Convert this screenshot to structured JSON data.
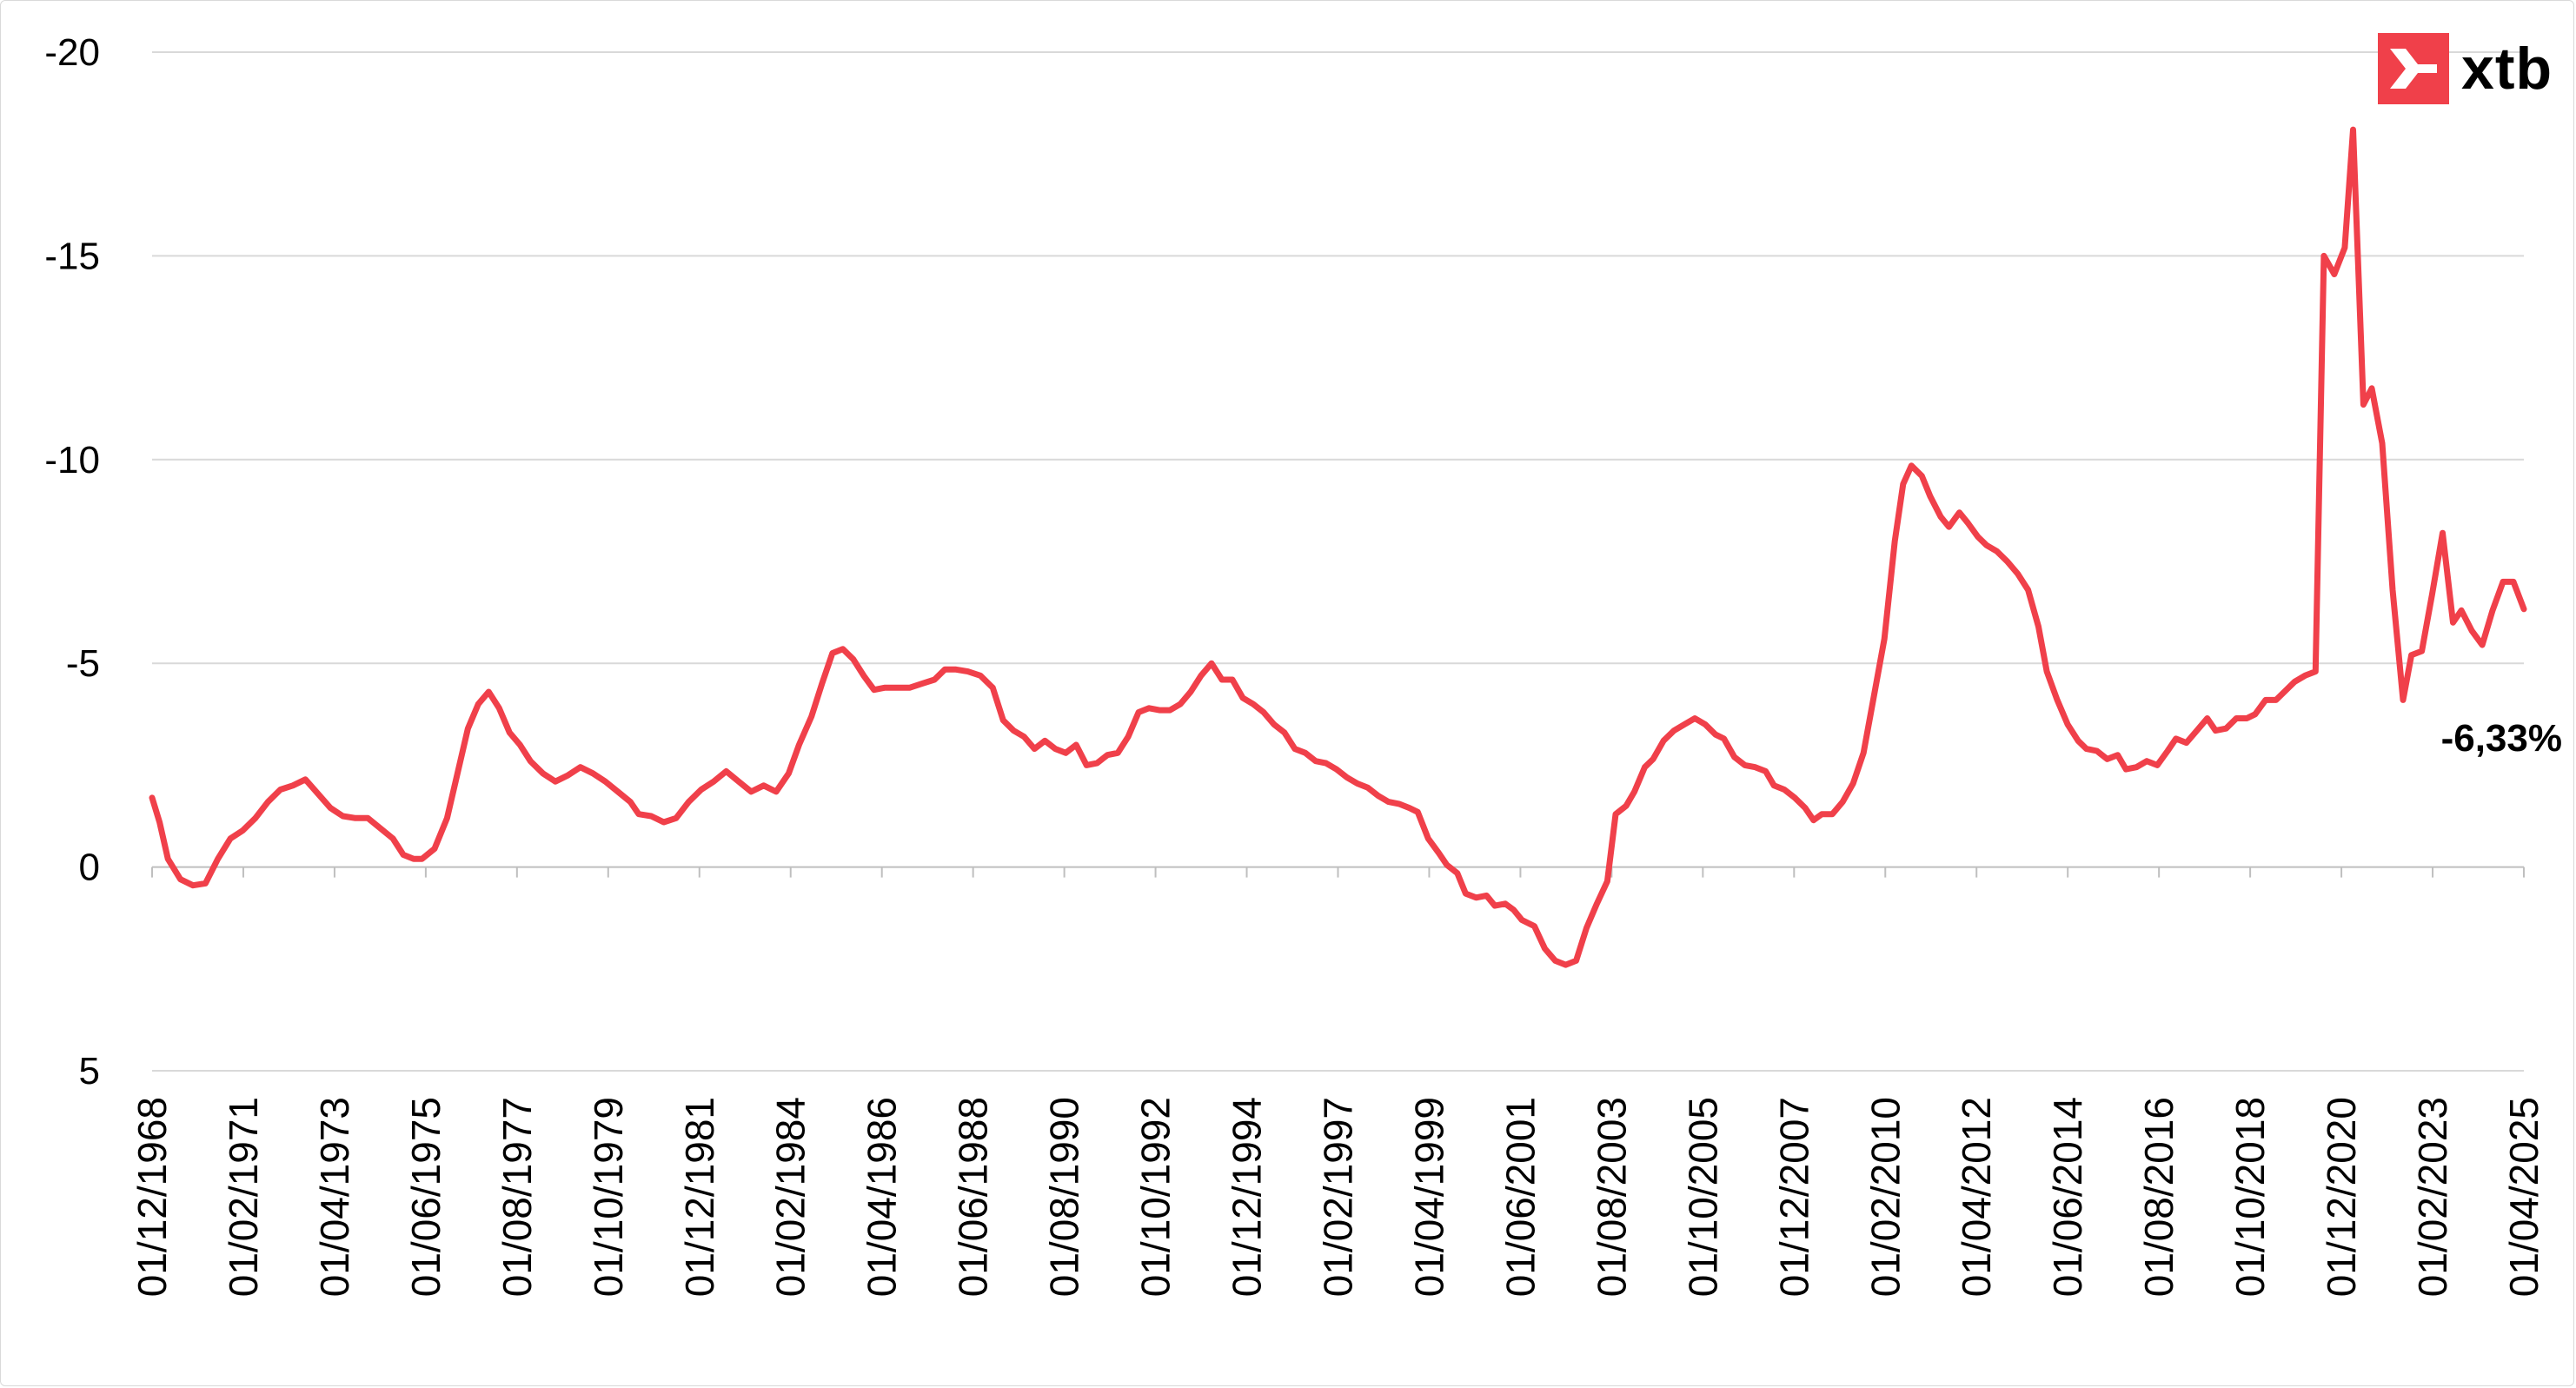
{
  "logo": {
    "text": "xtb",
    "icon": "xtb-x-icon",
    "color": "#f0404a"
  },
  "chart_data": {
    "type": "line",
    "title": "",
    "xlabel": "",
    "ylabel": "",
    "y_axis_inverted": true,
    "ylim": [
      -20,
      5
    ],
    "yticks": [
      -20,
      -15,
      -10,
      -5,
      0,
      5
    ],
    "ytick_labels": [
      "-20",
      "-15",
      "-10",
      "-5",
      "0",
      "5"
    ],
    "grid": "horizontal",
    "line_color": "#f0404a",
    "x_tick_labels": [
      "01/12/1968",
      "01/02/1971",
      "01/04/1973",
      "01/06/1975",
      "01/08/1977",
      "01/10/1979",
      "01/12/1981",
      "01/02/1984",
      "01/04/1986",
      "01/06/1988",
      "01/08/1990",
      "01/10/1992",
      "01/12/1994",
      "01/02/1997",
      "01/04/1999",
      "01/06/2001",
      "01/08/2003",
      "01/10/2005",
      "01/12/2007",
      "01/02/2010",
      "01/04/2012",
      "01/06/2014",
      "01/08/2016",
      "01/10/2018",
      "01/12/2020",
      "01/02/2023",
      "01/04/2025"
    ],
    "last_value_label": "-6,33%",
    "series": [
      {
        "values": [
          [
            1968.92,
            -1.7
          ],
          [
            1969.1,
            -1.1
          ],
          [
            1969.3,
            -0.2
          ],
          [
            1969.6,
            0.3
          ],
          [
            1969.9,
            0.45
          ],
          [
            1970.2,
            0.4
          ],
          [
            1970.5,
            -0.2
          ],
          [
            1970.8,
            -0.7
          ],
          [
            1971.1,
            -0.9
          ],
          [
            1971.4,
            -1.2
          ],
          [
            1971.7,
            -1.6
          ],
          [
            1972.0,
            -1.9
          ],
          [
            1972.3,
            -2.0
          ],
          [
            1972.6,
            -2.15
          ],
          [
            1972.9,
            -1.8
          ],
          [
            1973.2,
            -1.45
          ],
          [
            1973.5,
            -1.25
          ],
          [
            1973.8,
            -1.2
          ],
          [
            1974.1,
            -1.2
          ],
          [
            1974.4,
            -0.95
          ],
          [
            1974.7,
            -0.7
          ],
          [
            1974.95,
            -0.3
          ],
          [
            1975.2,
            -0.2
          ],
          [
            1975.4,
            -0.2
          ],
          [
            1975.7,
            -0.45
          ],
          [
            1976.0,
            -1.2
          ],
          [
            1976.25,
            -2.3
          ],
          [
            1976.5,
            -3.4
          ],
          [
            1976.75,
            -4.0
          ],
          [
            1977.0,
            -4.3
          ],
          [
            1977.25,
            -3.9
          ],
          [
            1977.5,
            -3.3
          ],
          [
            1977.75,
            -3.0
          ],
          [
            1978.0,
            -2.6
          ],
          [
            1978.3,
            -2.3
          ],
          [
            1978.6,
            -2.1
          ],
          [
            1978.9,
            -2.25
          ],
          [
            1979.2,
            -2.45
          ],
          [
            1979.5,
            -2.3
          ],
          [
            1979.8,
            -2.1
          ],
          [
            1980.1,
            -1.85
          ],
          [
            1980.4,
            -1.6
          ],
          [
            1980.6,
            -1.3
          ],
          [
            1980.9,
            -1.25
          ],
          [
            1981.2,
            -1.1
          ],
          [
            1981.5,
            -1.2
          ],
          [
            1981.8,
            -1.6
          ],
          [
            1982.1,
            -1.9
          ],
          [
            1982.4,
            -2.1
          ],
          [
            1982.7,
            -2.35
          ],
          [
            1983.0,
            -2.1
          ],
          [
            1983.3,
            -1.85
          ],
          [
            1983.6,
            -2.0
          ],
          [
            1983.9,
            -1.85
          ],
          [
            1984.2,
            -2.3
          ],
          [
            1984.45,
            -3.0
          ],
          [
            1984.75,
            -3.7
          ],
          [
            1985.0,
            -4.5
          ],
          [
            1985.25,
            -5.25
          ],
          [
            1985.5,
            -5.35
          ],
          [
            1985.75,
            -5.1
          ],
          [
            1986.0,
            -4.7
          ],
          [
            1986.25,
            -4.35
          ],
          [
            1986.5,
            -4.4
          ],
          [
            1986.8,
            -4.4
          ],
          [
            1987.1,
            -4.4
          ],
          [
            1987.4,
            -4.5
          ],
          [
            1987.7,
            -4.6
          ],
          [
            1987.95,
            -4.85
          ],
          [
            1988.2,
            -4.85
          ],
          [
            1988.5,
            -4.8
          ],
          [
            1988.8,
            -4.7
          ],
          [
            1989.1,
            -4.4
          ],
          [
            1989.35,
            -3.6
          ],
          [
            1989.6,
            -3.35
          ],
          [
            1989.85,
            -3.2
          ],
          [
            1990.1,
            -2.9
          ],
          [
            1990.35,
            -3.1
          ],
          [
            1990.6,
            -2.9
          ],
          [
            1990.85,
            -2.8
          ],
          [
            1991.1,
            -3.0
          ],
          [
            1991.35,
            -2.5
          ],
          [
            1991.6,
            -2.55
          ],
          [
            1991.85,
            -2.75
          ],
          [
            1992.1,
            -2.8
          ],
          [
            1992.35,
            -3.2
          ],
          [
            1992.6,
            -3.8
          ],
          [
            1992.85,
            -3.9
          ],
          [
            1993.1,
            -3.85
          ],
          [
            1993.35,
            -3.85
          ],
          [
            1993.6,
            -4.0
          ],
          [
            1993.85,
            -4.3
          ],
          [
            1994.1,
            -4.7
          ],
          [
            1994.35,
            -5.0
          ],
          [
            1994.6,
            -4.6
          ],
          [
            1994.85,
            -4.6
          ],
          [
            1995.1,
            -4.15
          ],
          [
            1995.35,
            -4.0
          ],
          [
            1995.6,
            -3.8
          ],
          [
            1995.85,
            -3.5
          ],
          [
            1996.1,
            -3.3
          ],
          [
            1996.35,
            -2.9
          ],
          [
            1996.6,
            -2.8
          ],
          [
            1996.85,
            -2.6
          ],
          [
            1997.1,
            -2.55
          ],
          [
            1997.35,
            -2.4
          ],
          [
            1997.6,
            -2.2
          ],
          [
            1997.85,
            -2.05
          ],
          [
            1998.1,
            -1.95
          ],
          [
            1998.35,
            -1.75
          ],
          [
            1998.6,
            -1.6
          ],
          [
            1998.85,
            -1.55
          ],
          [
            1999.1,
            -1.45
          ],
          [
            1999.3,
            -1.35
          ],
          [
            1999.55,
            -0.7
          ],
          [
            1999.8,
            -0.35
          ],
          [
            2000.0,
            -0.05
          ],
          [
            2000.25,
            0.15
          ],
          [
            2000.45,
            0.65
          ],
          [
            2000.7,
            0.75
          ],
          [
            2000.95,
            0.7
          ],
          [
            2001.15,
            0.95
          ],
          [
            2001.4,
            0.9
          ],
          [
            2001.6,
            1.05
          ],
          [
            2001.8,
            1.3
          ],
          [
            2002.1,
            1.45
          ],
          [
            2002.35,
            2.0
          ],
          [
            2002.6,
            2.3
          ],
          [
            2002.85,
            2.4
          ],
          [
            2003.1,
            2.3
          ],
          [
            2003.35,
            1.5
          ],
          [
            2003.6,
            0.9
          ],
          [
            2003.85,
            0.35
          ],
          [
            2004.05,
            -1.3
          ],
          [
            2004.3,
            -1.5
          ],
          [
            2004.5,
            -1.85
          ],
          [
            2004.75,
            -2.45
          ],
          [
            2004.95,
            -2.65
          ],
          [
            2005.2,
            -3.1
          ],
          [
            2005.45,
            -3.35
          ],
          [
            2005.7,
            -3.5
          ],
          [
            2005.95,
            -3.65
          ],
          [
            2006.2,
            -3.5
          ],
          [
            2006.45,
            -3.25
          ],
          [
            2006.65,
            -3.15
          ],
          [
            2006.9,
            -2.7
          ],
          [
            2007.15,
            -2.5
          ],
          [
            2007.4,
            -2.45
          ],
          [
            2007.65,
            -2.35
          ],
          [
            2007.85,
            -2.0
          ],
          [
            2008.1,
            -1.9
          ],
          [
            2008.35,
            -1.7
          ],
          [
            2008.6,
            -1.45
          ],
          [
            2008.8,
            -1.15
          ],
          [
            2009.0,
            -1.3
          ],
          [
            2009.25,
            -1.3
          ],
          [
            2009.5,
            -1.6
          ],
          [
            2009.75,
            -2.05
          ],
          [
            2010.0,
            -2.8
          ],
          [
            2010.25,
            -4.2
          ],
          [
            2010.5,
            -5.6
          ],
          [
            2010.75,
            -8.0
          ],
          [
            2010.95,
            -9.4
          ],
          [
            2011.15,
            -9.85
          ],
          [
            2011.4,
            -9.6
          ],
          [
            2011.6,
            -9.1
          ],
          [
            2011.85,
            -8.6
          ],
          [
            2012.05,
            -8.35
          ],
          [
            2012.3,
            -8.7
          ],
          [
            2012.5,
            -8.45
          ],
          [
            2012.75,
            -8.1
          ],
          [
            2012.95,
            -7.9
          ],
          [
            2013.2,
            -7.75
          ],
          [
            2013.45,
            -7.5
          ],
          [
            2013.7,
            -7.2
          ],
          [
            2013.95,
            -6.8
          ],
          [
            2014.2,
            -5.9
          ],
          [
            2014.4,
            -4.8
          ],
          [
            2014.65,
            -4.1
          ],
          [
            2014.9,
            -3.5
          ],
          [
            2015.15,
            -3.1
          ],
          [
            2015.35,
            -2.9
          ],
          [
            2015.6,
            -2.85
          ],
          [
            2015.85,
            -2.65
          ],
          [
            2016.1,
            -2.75
          ],
          [
            2016.3,
            -2.4
          ],
          [
            2016.55,
            -2.45
          ],
          [
            2016.8,
            -2.6
          ],
          [
            2017.05,
            -2.5
          ],
          [
            2017.3,
            -2.85
          ],
          [
            2017.5,
            -3.15
          ],
          [
            2017.75,
            -3.05
          ],
          [
            2018.0,
            -3.35
          ],
          [
            2018.25,
            -3.65
          ],
          [
            2018.45,
            -3.35
          ],
          [
            2018.7,
            -3.4
          ],
          [
            2018.95,
            -3.65
          ],
          [
            2019.2,
            -3.65
          ],
          [
            2019.4,
            -3.75
          ],
          [
            2019.65,
            -4.1
          ],
          [
            2019.9,
            -4.1
          ],
          [
            2020.1,
            -4.3
          ],
          [
            2020.35,
            -4.55
          ],
          [
            2020.6,
            -4.7
          ],
          [
            2020.85,
            -4.8
          ],
          [
            2021.05,
            -15.0
          ],
          [
            2021.3,
            -14.55
          ],
          [
            2021.55,
            -15.2
          ],
          [
            2021.75,
            -18.1
          ],
          [
            2022.0,
            -11.35
          ],
          [
            2022.2,
            -11.75
          ],
          [
            2022.45,
            -10.4
          ],
          [
            2022.7,
            -6.8
          ],
          [
            2022.95,
            -4.1
          ],
          [
            2023.15,
            -5.2
          ],
          [
            2023.4,
            -5.3
          ],
          [
            2023.65,
            -6.7
          ],
          [
            2023.9,
            -8.2
          ],
          [
            2024.15,
            -6.0
          ],
          [
            2024.35,
            -6.3
          ],
          [
            2024.6,
            -5.8
          ],
          [
            2024.85,
            -5.45
          ],
          [
            2025.1,
            -6.3
          ],
          [
            2025.35,
            -7.0
          ],
          [
            2025.6,
            -7.0
          ],
          [
            2025.85,
            -6.33
          ]
        ]
      }
    ]
  }
}
